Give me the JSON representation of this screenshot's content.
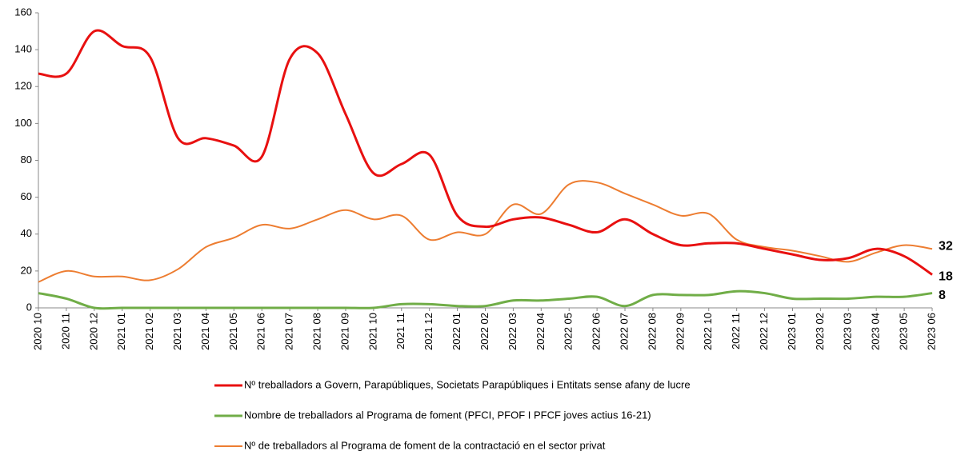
{
  "chart_data": {
    "type": "line",
    "categories": [
      "2020 10",
      "2020 11",
      "2020 12",
      "2021 01",
      "2021 02",
      "2021 03",
      "2021 04",
      "2021 05",
      "2021 06",
      "2021 07",
      "2021 08",
      "2021 09",
      "2021 10",
      "2021 11",
      "2021 12",
      "2022 01",
      "2022 02",
      "2022 03",
      "2022 04",
      "2022 05",
      "2022 06",
      "2022 07",
      "2022 08",
      "2022 09",
      "2022 10",
      "2022 11",
      "2022 12",
      "2023 01",
      "2023 02",
      "2023 03",
      "2023 04",
      "2023 05",
      "2023 06"
    ],
    "series": [
      {
        "name": "Nº treballadors a Govern, Parapúbliques,  Societats Parapúbliques i Entitats sense afany de lucre",
        "color": "#e81010",
        "width": 3,
        "values": [
          127,
          127,
          150,
          142,
          136,
          92,
          92,
          88,
          82,
          135,
          138,
          105,
          73,
          78,
          83,
          50,
          44,
          48,
          49,
          45,
          41,
          48,
          40,
          34,
          35,
          35,
          32,
          29,
          26,
          27,
          32,
          28,
          18
        ]
      },
      {
        "name": "Nombre de treballadors al Programa de foment (PFCI, PFOF I PFCF joves actius 16-21)",
        "color": "#70ad47",
        "width": 3,
        "values": [
          8,
          5,
          0,
          0,
          0,
          0,
          0,
          0,
          0,
          0,
          0,
          0,
          0,
          2,
          2,
          1,
          1,
          4,
          4,
          5,
          6,
          1,
          7,
          7,
          7,
          9,
          8,
          5,
          5,
          5,
          6,
          6,
          8
        ]
      },
      {
        "name": "Nº de treballadors al Programa de foment de la contractació en el sector privat",
        "color": "#ed7d31",
        "width": 2,
        "values": [
          14,
          20,
          17,
          17,
          15,
          21,
          33,
          38,
          45,
          43,
          48,
          53,
          48,
          50,
          37,
          41,
          40,
          56,
          51,
          67,
          68,
          62,
          56,
          50,
          51,
          37,
          33,
          31,
          28,
          25,
          30,
          34,
          32
        ]
      }
    ],
    "ylim": [
      0,
      160
    ],
    "yticks": [
      0,
      20,
      40,
      60,
      80,
      100,
      120,
      140,
      160
    ],
    "grid": false
  }
}
